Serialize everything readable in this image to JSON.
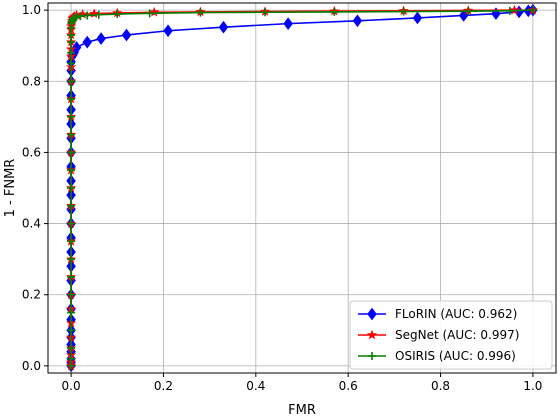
{
  "chart_data": {
    "type": "line",
    "title": "",
    "xlabel": "FMR",
    "ylabel": "1 - FNMR",
    "xlim": [
      -0.05,
      1.05
    ],
    "ylim": [
      -0.02,
      1.02
    ],
    "xticks": [
      "0.0",
      "0.2",
      "0.4",
      "0.6",
      "0.8",
      "1.0"
    ],
    "xtick_values": [
      0,
      0.2,
      0.4,
      0.6,
      0.8,
      1.0
    ],
    "yticks": [
      "0.0",
      "0.2",
      "0.4",
      "0.6",
      "0.8",
      "1.0"
    ],
    "ytick_values": [
      0,
      0.2,
      0.4,
      0.6,
      0.8,
      1.0
    ],
    "grid": true,
    "legend_position": "lower-right",
    "series": [
      {
        "name": "FLoRIN (AUC: 0.962)",
        "color": "#0000ff",
        "marker": "diamond",
        "x": [
          0,
          0,
          0,
          0,
          0,
          0,
          0,
          0,
          0,
          0,
          0,
          0,
          0,
          0,
          0,
          0,
          0,
          0,
          0,
          0,
          0,
          0,
          0,
          0,
          0,
          0,
          0,
          0.002,
          0.004,
          0.007,
          0.012,
          0.035,
          0.065,
          0.12,
          0.21,
          0.33,
          0.47,
          0.62,
          0.75,
          0.85,
          0.92,
          0.97,
          0.99,
          1.0
        ],
        "y": [
          0,
          0.01,
          0.02,
          0.04,
          0.06,
          0.08,
          0.1,
          0.13,
          0.16,
          0.2,
          0.24,
          0.28,
          0.32,
          0.36,
          0.4,
          0.44,
          0.48,
          0.52,
          0.56,
          0.6,
          0.64,
          0.68,
          0.72,
          0.76,
          0.8,
          0.83,
          0.855,
          0.87,
          0.875,
          0.882,
          0.895,
          0.91,
          0.92,
          0.93,
          0.942,
          0.952,
          0.962,
          0.97,
          0.978,
          0.985,
          0.99,
          0.995,
          0.998,
          1.0
        ]
      },
      {
        "name": "SegNet (AUC: 0.997)",
        "color": "#ff0000",
        "marker": "star",
        "x": [
          0,
          0,
          0,
          0,
          0,
          0,
          0,
          0,
          0,
          0,
          0,
          0,
          0,
          0,
          0,
          0,
          0,
          0,
          0,
          0,
          0,
          0,
          0,
          0,
          0,
          0,
          0,
          0.001,
          0.002,
          0.003,
          0.004,
          0.005,
          0.007,
          0.012,
          0.025,
          0.05,
          0.1,
          0.18,
          0.28,
          0.42,
          0.57,
          0.72,
          0.86,
          0.96,
          1.0
        ],
        "y": [
          0,
          0.01,
          0.03,
          0.05,
          0.08,
          0.12,
          0.16,
          0.2,
          0.25,
          0.3,
          0.35,
          0.4,
          0.45,
          0.5,
          0.55,
          0.6,
          0.65,
          0.7,
          0.75,
          0.8,
          0.84,
          0.87,
          0.89,
          0.91,
          0.93,
          0.945,
          0.955,
          0.963,
          0.97,
          0.975,
          0.978,
          0.98,
          0.983,
          0.986,
          0.988,
          0.99,
          0.992,
          0.994,
          0.995,
          0.996,
          0.997,
          0.998,
          0.999,
          1.0,
          1.0
        ]
      },
      {
        "name": "OSIRIS (AUC: 0.996)",
        "color": "#008000",
        "marker": "plus",
        "x": [
          0,
          0,
          0,
          0,
          0,
          0,
          0,
          0,
          0,
          0,
          0,
          0,
          0,
          0,
          0,
          0,
          0,
          0,
          0,
          0,
          0,
          0,
          0,
          0.001,
          0.002,
          0.004,
          0.007,
          0.012,
          0.02,
          0.035,
          0.06,
          0.1,
          0.17,
          0.28,
          0.42,
          0.57,
          0.72,
          0.86,
          0.95,
          1.0
        ],
        "y": [
          0,
          0.02,
          0.05,
          0.1,
          0.15,
          0.2,
          0.25,
          0.3,
          0.35,
          0.4,
          0.45,
          0.5,
          0.55,
          0.6,
          0.65,
          0.7,
          0.75,
          0.8,
          0.85,
          0.88,
          0.91,
          0.93,
          0.95,
          0.963,
          0.97,
          0.975,
          0.978,
          0.981,
          0.983,
          0.985,
          0.987,
          0.989,
          0.991,
          0.993,
          0.994,
          0.995,
          0.996,
          0.997,
          0.998,
          1.0
        ]
      }
    ]
  }
}
